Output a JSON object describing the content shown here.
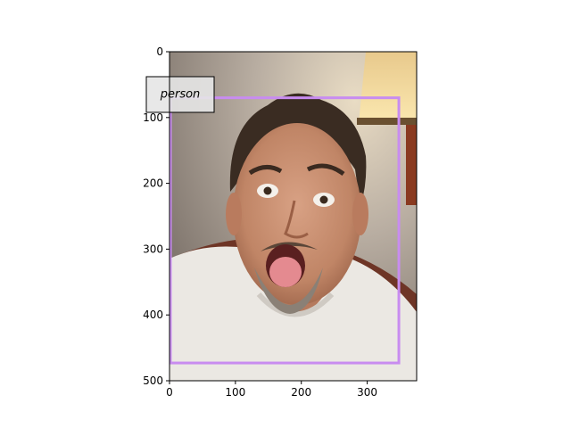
{
  "plot": {
    "xlim": [
      0,
      375
    ],
    "ylim": [
      500,
      0
    ],
    "x_ticks": [
      0,
      100,
      200,
      300
    ],
    "y_ticks": [
      0,
      100,
      200,
      300,
      400,
      500
    ],
    "axis_color": "#000000"
  },
  "detection": {
    "label": "person",
    "box": {
      "x_min": 0,
      "y_min": 70,
      "x_max": 348,
      "y_max": 473
    },
    "box_color": "#c88cf0",
    "label_bg": "#e6e6e6"
  },
  "photo": {
    "description_colors": {
      "wall": "#b8aca0",
      "lampshade": "#f0d890",
      "shirt": "#eceae6",
      "skin": "#c88f72",
      "hair": "#3a2c22",
      "sofa": "#7a3a2a"
    }
  }
}
